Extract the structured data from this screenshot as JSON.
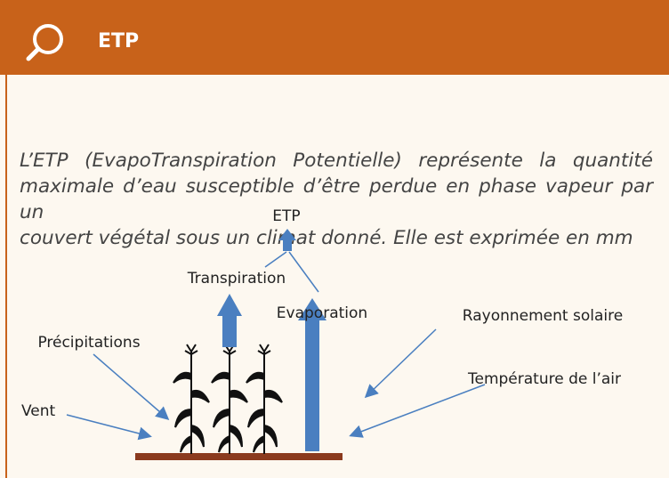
{
  "header": {
    "title": "ETP"
  },
  "paragraph": [
    "L’ETP (EvapoTranspiration Potentielle) représente la quantité",
    "maximale d’eau susceptible d’être perdue en phase vapeur par un",
    "couvert végétal sous un climat donné. Elle est exprimée en mm"
  ],
  "diagram": {
    "labels": [
      "ETP",
      "Transpiration",
      "Evaporation",
      "Précipitations",
      "Vent",
      "Rayonnement solaire",
      "Température de l’air"
    ]
  }
}
